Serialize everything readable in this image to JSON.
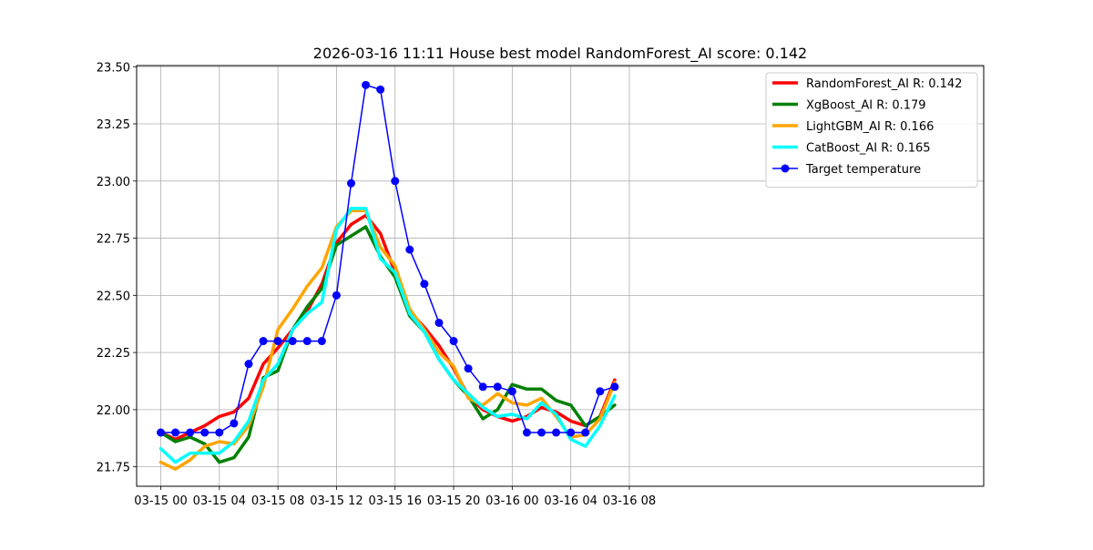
{
  "chart_data": {
    "type": "line",
    "title": "2026-03-16 11:11 House best model RandomForest_AI score: 0.142",
    "xlabel": "",
    "ylabel": "",
    "x_unit": "hours since 03-15 00:00",
    "xlim": [
      -1.65,
      56.2
    ],
    "ylim": [
      21.665,
      23.505
    ],
    "grid": true,
    "legend_position": "upper right",
    "x_ticks": [
      {
        "x": 0,
        "label": "03-15 00"
      },
      {
        "x": 4,
        "label": "03-15 04"
      },
      {
        "x": 8,
        "label": "03-15 08"
      },
      {
        "x": 12,
        "label": "03-15 12"
      },
      {
        "x": 16,
        "label": "03-15 16"
      },
      {
        "x": 20,
        "label": "03-15 20"
      },
      {
        "x": 24,
        "label": "03-16 00"
      },
      {
        "x": 28,
        "label": "03-16 04"
      },
      {
        "x": 32,
        "label": "03-16 08"
      }
    ],
    "y_ticks": [
      {
        "y": 21.75,
        "label": "21.75"
      },
      {
        "y": 22.0,
        "label": "22.00"
      },
      {
        "y": 22.25,
        "label": "22.25"
      },
      {
        "y": 22.5,
        "label": "22.50"
      },
      {
        "y": 22.75,
        "label": "22.75"
      },
      {
        "y": 23.0,
        "label": "23.00"
      },
      {
        "y": 23.25,
        "label": "23.25"
      },
      {
        "y": 23.5,
        "label": "23.50"
      }
    ],
    "x": [
      0,
      1,
      2,
      3,
      4,
      5,
      6,
      7,
      8,
      9,
      10,
      11,
      12,
      13,
      14,
      15,
      16,
      17,
      18,
      19,
      20,
      21,
      22,
      23,
      24,
      25,
      26,
      27,
      28,
      29,
      30,
      31
    ],
    "series": [
      {
        "name": "RandomForest_AI R: 0.142",
        "color": "#ff0000",
        "line_width": 3.5,
        "marker": false,
        "values": [
          21.9,
          21.87,
          21.9,
          21.93,
          21.97,
          21.99,
          22.05,
          22.2,
          22.27,
          22.35,
          22.43,
          22.55,
          22.73,
          22.81,
          22.85,
          22.77,
          22.6,
          22.43,
          22.36,
          22.28,
          22.18,
          22.06,
          22.0,
          21.97,
          21.95,
          21.97,
          22.01,
          21.99,
          21.95,
          21.93,
          21.97,
          22.13
        ]
      },
      {
        "name": "XgBoost_AI R: 0.179",
        "color": "#008000",
        "line_width": 3.5,
        "marker": false,
        "values": [
          21.9,
          21.86,
          21.88,
          21.85,
          21.77,
          21.79,
          21.88,
          22.14,
          22.17,
          22.35,
          22.45,
          22.53,
          22.72,
          22.76,
          22.8,
          22.67,
          22.58,
          22.41,
          22.34,
          22.22,
          22.13,
          22.06,
          21.96,
          22.0,
          22.11,
          22.09,
          22.09,
          22.04,
          22.02,
          21.93,
          21.97,
          22.02
        ]
      },
      {
        "name": "LightGBM_AI R: 0.166",
        "color": "#ffa500",
        "line_width": 3.5,
        "marker": false,
        "values": [
          21.77,
          21.74,
          21.78,
          21.84,
          21.86,
          21.85,
          21.93,
          22.1,
          22.35,
          22.44,
          22.54,
          22.62,
          22.8,
          22.87,
          22.87,
          22.71,
          22.63,
          22.44,
          22.35,
          22.25,
          22.19,
          22.05,
          22.02,
          22.07,
          22.03,
          22.02,
          22.05,
          21.97,
          21.88,
          21.89,
          21.96,
          22.12
        ]
      },
      {
        "name": "CatBoost_AI R: 0.165",
        "color": "#00ffff",
        "line_width": 3.5,
        "marker": false,
        "values": [
          21.83,
          21.77,
          21.81,
          21.81,
          21.81,
          21.86,
          21.95,
          22.13,
          22.2,
          22.35,
          22.42,
          22.47,
          22.79,
          22.88,
          22.88,
          22.66,
          22.6,
          22.42,
          22.34,
          22.22,
          22.13,
          22.07,
          22.01,
          21.97,
          21.98,
          21.96,
          22.03,
          21.98,
          21.87,
          21.84,
          21.93,
          22.06
        ]
      },
      {
        "name": "Target temperature",
        "color": "#0000ff",
        "line_width": 1.5,
        "marker": true,
        "values": [
          21.9,
          21.9,
          21.9,
          21.9,
          21.9,
          21.94,
          22.2,
          22.3,
          22.3,
          22.3,
          22.3,
          22.3,
          22.5,
          22.99,
          23.42,
          23.4,
          23.0,
          22.7,
          22.55,
          22.38,
          22.3,
          22.18,
          22.1,
          22.1,
          22.08,
          21.9,
          21.9,
          21.9,
          21.9,
          21.9,
          22.08,
          22.1
        ]
      }
    ]
  }
}
